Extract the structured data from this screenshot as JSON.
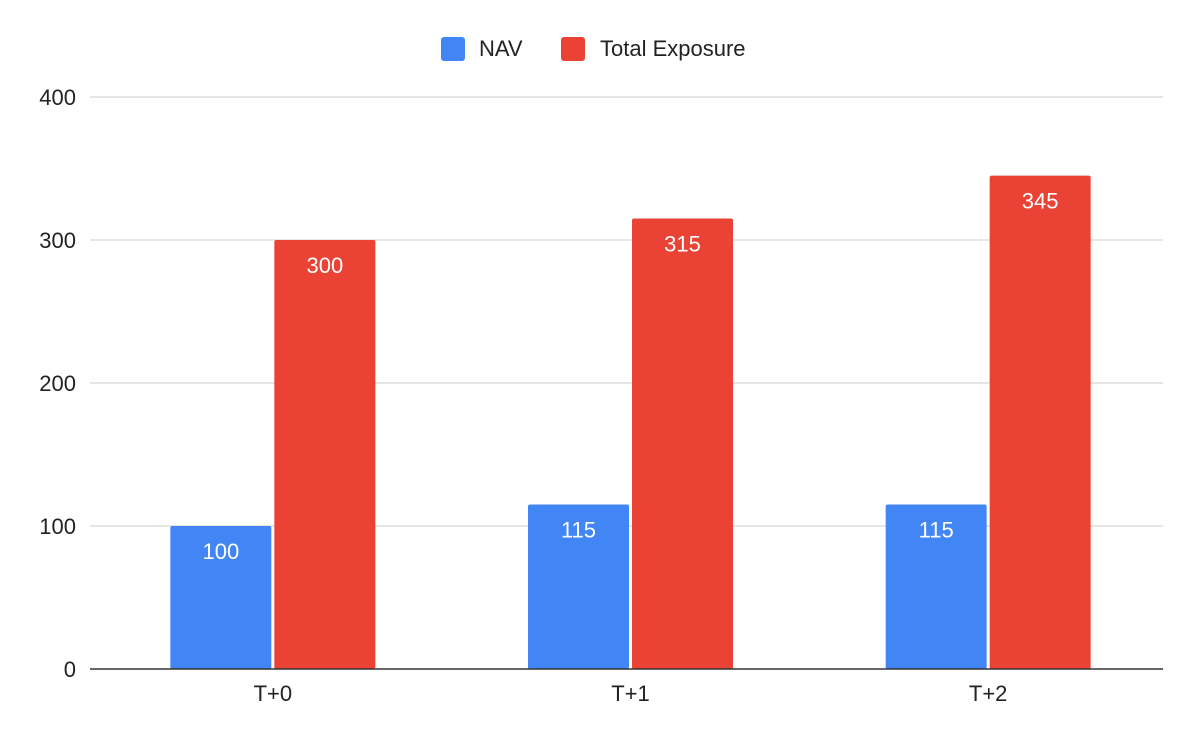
{
  "chart_data": {
    "type": "bar",
    "categories": [
      "T+0",
      "T+1",
      "T+2"
    ],
    "series": [
      {
        "name": "NAV",
        "values": [
          100,
          115,
          115
        ],
        "color": "#4285f4"
      },
      {
        "name": "Total Exposure",
        "values": [
          300,
          315,
          345
        ],
        "color": "#ea4335"
      }
    ],
    "title": "",
    "xlabel": "",
    "ylabel": "",
    "ylim": [
      0,
      400
    ],
    "yticks": [
      0,
      100,
      200,
      300,
      400
    ],
    "grid": true,
    "legend_position": "top-center",
    "data_labels": true,
    "colors": {
      "grid": "#cccccc",
      "axis": "#333333",
      "text": "#222222",
      "label": "#ffffff"
    }
  }
}
